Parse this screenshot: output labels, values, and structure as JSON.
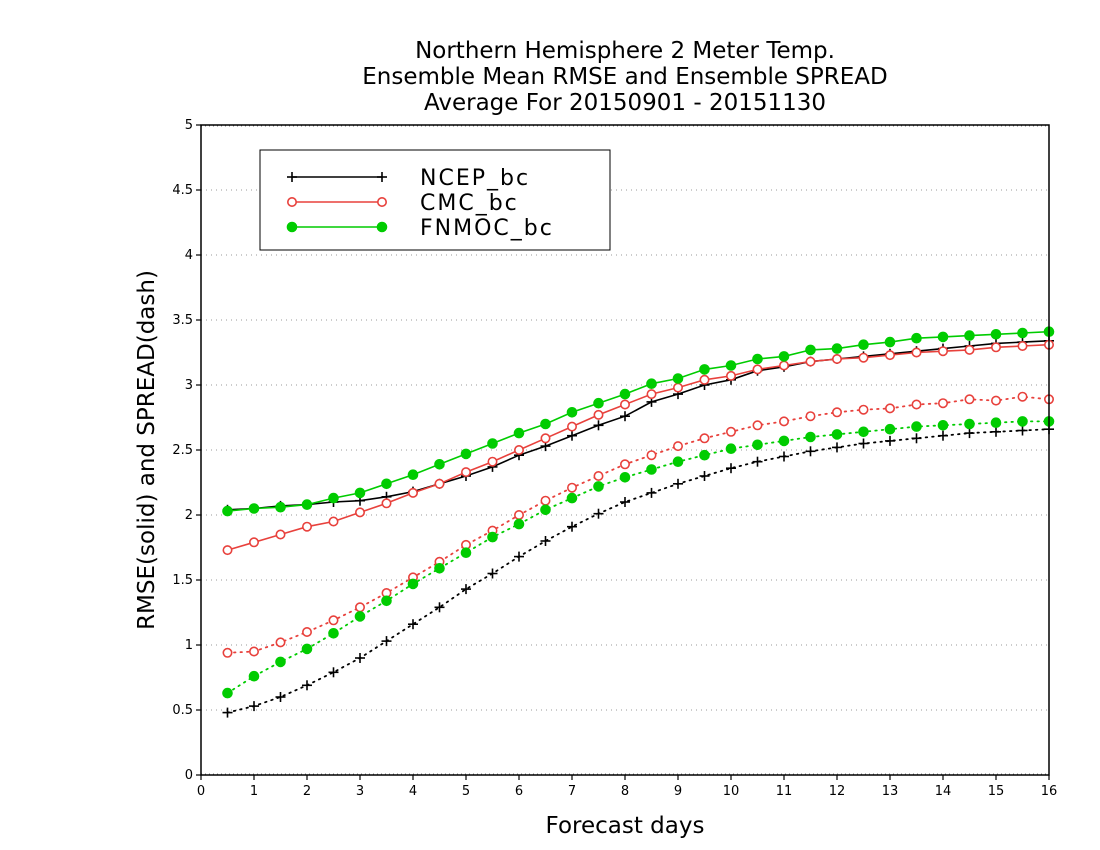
{
  "chart_data": {
    "type": "line",
    "title": [
      "Northern Hemisphere 2 Meter Temp.",
      "Ensemble Mean RMSE and Ensemble SPREAD",
      "Average For 20150901 - 20151130"
    ],
    "xlabel": "Forecast days",
    "ylabel": "RMSE(solid) and SPREAD(dash)",
    "xlim": [
      0,
      16
    ],
    "ylim": [
      0,
      5
    ],
    "xticks": [
      0,
      1,
      2,
      3,
      4,
      5,
      6,
      7,
      8,
      9,
      10,
      11,
      12,
      13,
      14,
      15,
      16
    ],
    "yticks": [
      0,
      0.5,
      1,
      1.5,
      2,
      2.5,
      3,
      3.5,
      4,
      4.5,
      5
    ],
    "ytick_labels": [
      "0",
      "0.5",
      "1",
      "1.5",
      "2",
      "2.5",
      "3",
      "3.5",
      "4",
      "4.5",
      "5"
    ],
    "grid": "horizontal dotted",
    "legend_position": "top-left",
    "x": [
      0.5,
      1.0,
      1.5,
      2.0,
      2.5,
      3.0,
      3.5,
      4.0,
      4.5,
      5.0,
      5.5,
      6.0,
      6.5,
      7.0,
      7.5,
      8.0,
      8.5,
      9.0,
      9.5,
      10.0,
      10.5,
      11.0,
      11.5,
      12.0,
      12.5,
      13.0,
      13.5,
      14.0,
      14.5,
      15.0,
      15.5,
      16.0
    ],
    "series": [
      {
        "name": "NCEP_bc",
        "color": "#000000",
        "marker": "plus",
        "rmse": [
          2.04,
          2.05,
          2.07,
          2.08,
          2.1,
          2.11,
          2.14,
          2.18,
          2.24,
          2.3,
          2.37,
          2.46,
          2.53,
          2.61,
          2.69,
          2.76,
          2.87,
          2.93,
          3.0,
          3.04,
          3.11,
          3.14,
          3.18,
          3.2,
          3.22,
          3.24,
          3.26,
          3.28,
          3.3,
          3.32,
          3.33,
          3.34
        ],
        "spread": [
          0.48,
          0.53,
          0.6,
          0.69,
          0.79,
          0.9,
          1.03,
          1.16,
          1.29,
          1.43,
          1.55,
          1.68,
          1.8,
          1.91,
          2.01,
          2.1,
          2.17,
          2.24,
          2.3,
          2.36,
          2.41,
          2.45,
          2.49,
          2.52,
          2.55,
          2.57,
          2.59,
          2.61,
          2.63,
          2.64,
          2.65,
          2.66
        ]
      },
      {
        "name": "CMC_bc",
        "color": "#e8413c",
        "marker": "open-circle",
        "rmse": [
          1.73,
          1.79,
          1.85,
          1.91,
          1.95,
          2.02,
          2.09,
          2.17,
          2.24,
          2.33,
          2.41,
          2.5,
          2.59,
          2.68,
          2.77,
          2.85,
          2.93,
          2.98,
          3.04,
          3.07,
          3.12,
          3.15,
          3.18,
          3.2,
          3.21,
          3.23,
          3.25,
          3.26,
          3.27,
          3.29,
          3.3,
          3.31
        ],
        "spread": [
          0.94,
          0.95,
          1.02,
          1.1,
          1.19,
          1.29,
          1.4,
          1.52,
          1.64,
          1.77,
          1.88,
          2.0,
          2.11,
          2.21,
          2.3,
          2.39,
          2.46,
          2.53,
          2.59,
          2.64,
          2.69,
          2.72,
          2.76,
          2.79,
          2.81,
          2.82,
          2.85,
          2.86,
          2.89,
          2.88,
          2.91,
          2.89
        ]
      },
      {
        "name": "FNMOC_bc",
        "color": "#00cc00",
        "marker": "filled-circle",
        "rmse": [
          2.03,
          2.05,
          2.06,
          2.08,
          2.13,
          2.17,
          2.24,
          2.31,
          2.39,
          2.47,
          2.55,
          2.63,
          2.7,
          2.79,
          2.86,
          2.93,
          3.01,
          3.05,
          3.12,
          3.15,
          3.2,
          3.22,
          3.27,
          3.28,
          3.31,
          3.33,
          3.36,
          3.37,
          3.38,
          3.39,
          3.4,
          3.41
        ],
        "spread": [
          0.63,
          0.76,
          0.87,
          0.97,
          1.09,
          1.22,
          1.34,
          1.47,
          1.59,
          1.71,
          1.83,
          1.93,
          2.04,
          2.13,
          2.22,
          2.29,
          2.35,
          2.41,
          2.46,
          2.51,
          2.54,
          2.57,
          2.6,
          2.62,
          2.64,
          2.66,
          2.68,
          2.69,
          2.7,
          2.71,
          2.72,
          2.72
        ]
      }
    ]
  }
}
